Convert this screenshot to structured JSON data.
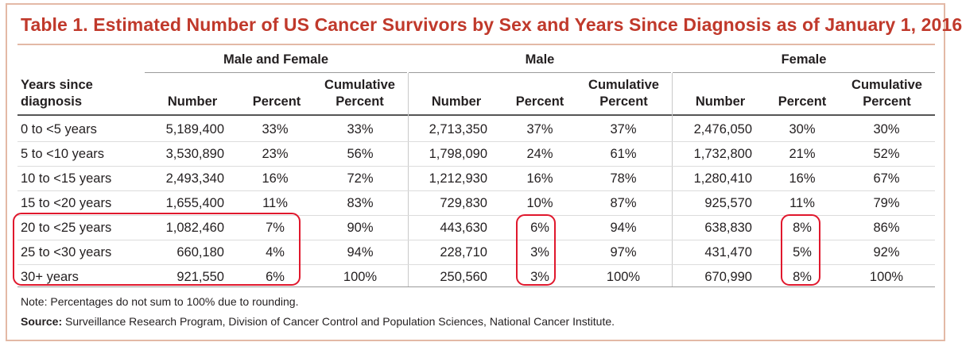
{
  "title": "Table 1. Estimated Number of US Cancer Survivors by Sex and Years Since Diagnosis as of January 1, 2016",
  "groups": [
    "Male and Female",
    "Male",
    "Female"
  ],
  "row_header": [
    "Years since",
    "diagnosis"
  ],
  "col_headers": {
    "number": "Number",
    "percent": "Percent",
    "cumulative": [
      "Cumulative",
      "Percent"
    ]
  },
  "rows": [
    {
      "label": "0 to <5 years",
      "values": [
        "5,189,400",
        "33%",
        "33%",
        "2,713,350",
        "37%",
        "37%",
        "2,476,050",
        "30%",
        "30%"
      ]
    },
    {
      "label": "5 to <10 years",
      "values": [
        "3,530,890",
        "23%",
        "56%",
        "1,798,090",
        "24%",
        "61%",
        "1,732,800",
        "21%",
        "52%"
      ]
    },
    {
      "label": "10 to <15 years",
      "values": [
        "2,493,340",
        "16%",
        "72%",
        "1,212,930",
        "16%",
        "78%",
        "1,280,410",
        "16%",
        "67%"
      ]
    },
    {
      "label": "15 to <20 years",
      "values": [
        "1,655,400",
        "11%",
        "83%",
        "729,830",
        "10%",
        "87%",
        "925,570",
        "11%",
        "79%"
      ]
    },
    {
      "label": "20 to <25 years",
      "values": [
        "1,082,460",
        "7%",
        "90%",
        "443,630",
        "6%",
        "94%",
        "638,830",
        "8%",
        "86%"
      ]
    },
    {
      "label": "25 to <30 years",
      "values": [
        "660,180",
        "4%",
        "94%",
        "228,710",
        "3%",
        "97%",
        "431,470",
        "5%",
        "92%"
      ]
    },
    {
      "label": "30+ years",
      "values": [
        "921,550",
        "6%",
        "100%",
        "250,560",
        "3%",
        "100%",
        "670,990",
        "8%",
        "100%"
      ]
    }
  ],
  "note": "Note: Percentages do not sum to 100% due to rounding.",
  "source_label": "Source:",
  "source_text": " Surveillance Research Program, Division of Cancer Control and Population Sciences, National Cancer Institute.",
  "colors": {
    "title": "#c0392b",
    "frame": "#e3b9a6",
    "highlight": "#e0182d"
  }
}
